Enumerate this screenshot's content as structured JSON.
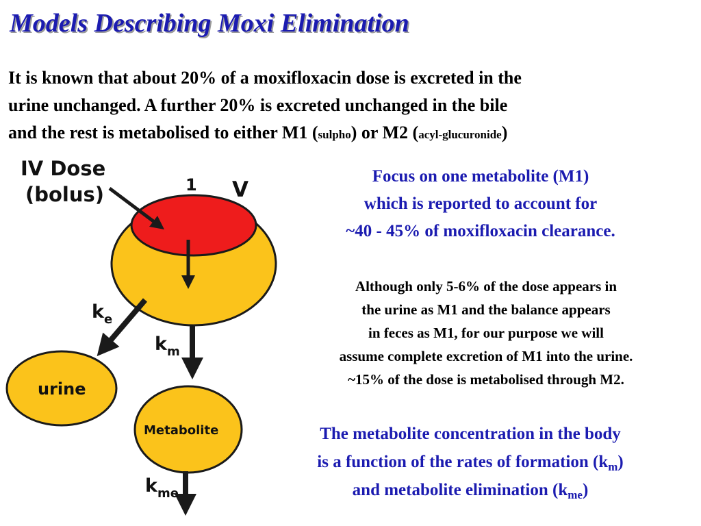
{
  "title": "Models Describing Moxi Elimination",
  "intro": {
    "line1": "It is known that about 20% of a moxifloxacin dose is excreted in the",
    "line2": "urine unchanged.  A further 20% is excreted unchanged in the bile",
    "line3_a": "and the rest is metabolised to either M1 (",
    "line3_sulpho": "sulpho",
    "line3_b": ") or M2 (",
    "line3_acyl": "acyl-glucuronide",
    "line3_c": ")"
  },
  "diagram": {
    "dose_line1": "IV Dose",
    "dose_line2": "(bolus)",
    "one": "1",
    "v": "V",
    "ke_k": "k",
    "ke_sub": "e",
    "km_k": "k",
    "km_sub": "m",
    "kme_k": "k",
    "kme_sub": "me",
    "urine": "urine",
    "metabolite": "Metabolite",
    "colors": {
      "compartment": "#fbc31b",
      "central": "#ee1c1c",
      "outline": "#1a1a1a"
    }
  },
  "focus": {
    "line1": "Focus on one metabolite (M1)",
    "line2": "which is reported to account for",
    "line3": "~40 - 45% of moxifloxacin clearance."
  },
  "although": {
    "line1": "Although only 5-6% of the dose appears in",
    "line2": "the urine as M1 and the balance appears",
    "line3": "in feces as M1, for our purpose we will",
    "line4": "assume complete excretion of M1 into the urine.",
    "line5": "~15% of the dose is metabolised through M2."
  },
  "concentration": {
    "line1": "The metabolite concentration in the body",
    "line2_a": "is a function of the rates of formation (k",
    "line2_sub": "m",
    "line2_b": ")",
    "line3_a": "and metabolite elimination (k",
    "line3_sub": "me",
    "line3_b": ")"
  }
}
